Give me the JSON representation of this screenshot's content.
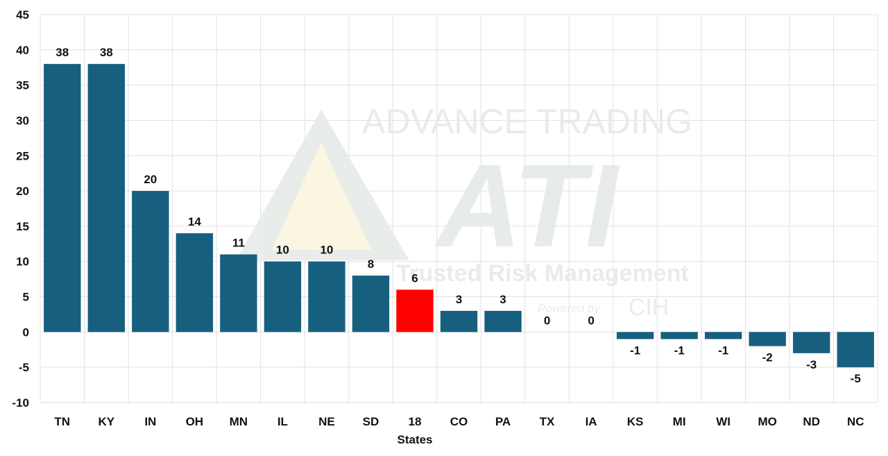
{
  "chart_data": {
    "type": "bar",
    "categories": [
      "TN",
      "KY",
      "IN",
      "OH",
      "MN",
      "IL",
      "NE",
      "SD",
      "18",
      "CO",
      "PA",
      "TX",
      "IA",
      "KS",
      "MI",
      "WI",
      "MO",
      "ND",
      "NC"
    ],
    "values": [
      38,
      38,
      20,
      14,
      11,
      10,
      10,
      8,
      6,
      3,
      3,
      0,
      0,
      -1,
      -1,
      -1,
      -2,
      -3,
      -5
    ],
    "highlight_category": "18",
    "title": "",
    "xlabel": "States",
    "ylabel": "",
    "ylim": [
      -10,
      45
    ],
    "yticks": [
      -10,
      -5,
      0,
      5,
      10,
      15,
      20,
      25,
      30,
      35,
      40,
      45
    ],
    "grid": true,
    "legend": "none",
    "data_labels": true
  },
  "colors": {
    "bar": "#175f7f",
    "highlight": "#ff0000",
    "grid": "#e1e1e1",
    "text": "#111111"
  },
  "watermark": {
    "line1": "ADVANCE TRADING",
    "logo": "ATI",
    "line2": "Trusted Risk Management",
    "line3": "Powered by",
    "line4": "CIH"
  }
}
